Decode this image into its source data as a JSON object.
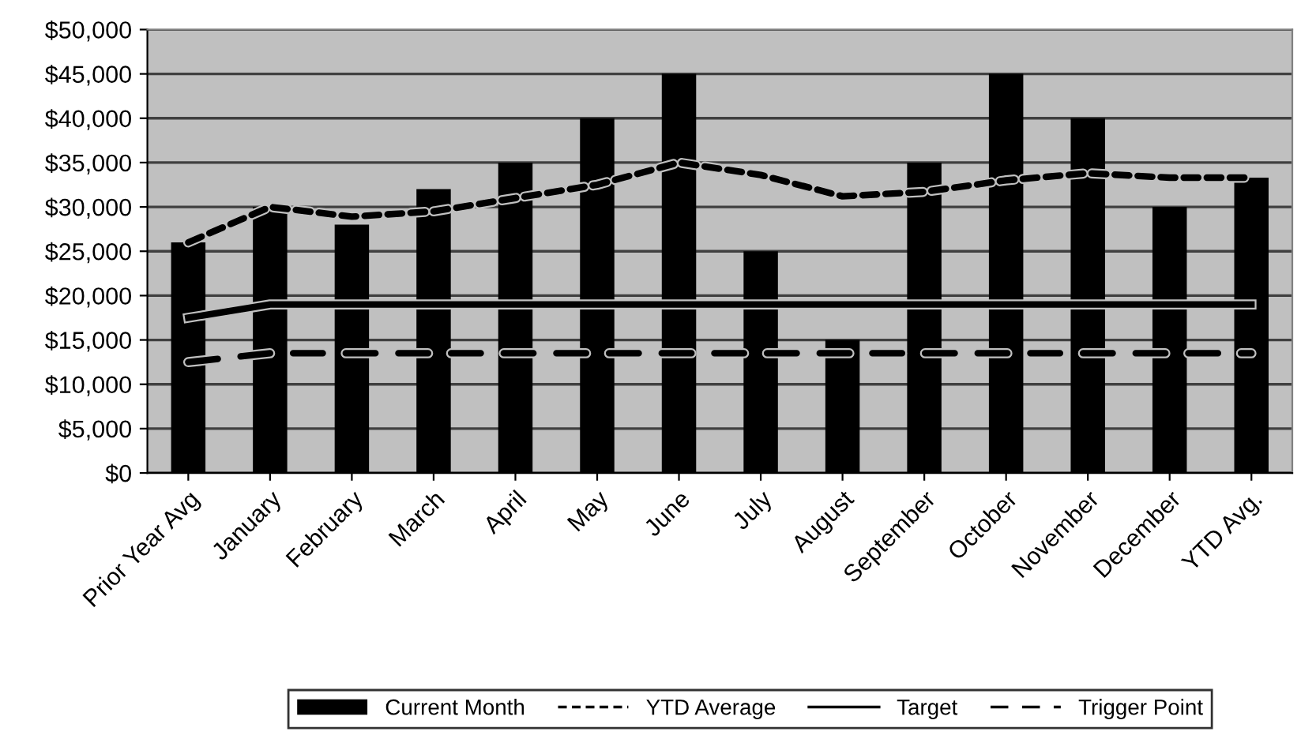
{
  "chart_data": {
    "type": "bar",
    "categories": [
      "Prior Year Avg",
      "January",
      "February",
      "March",
      "April",
      "May",
      "June",
      "July",
      "August",
      "September",
      "October",
      "November",
      "December",
      "YTD Avg."
    ],
    "series": [
      {
        "name": "Current Month",
        "color": "#000000",
        "values": [
          26000,
          30000,
          28000,
          32000,
          35000,
          40000,
          45000,
          25000,
          15000,
          35000,
          45000,
          40000,
          30000,
          33300
        ]
      },
      {
        "name": "YTD Average",
        "type": "line",
        "color": "#000000",
        "line_style": "dotted",
        "values": [
          26000,
          30000,
          28900,
          29500,
          31000,
          32500,
          35000,
          33600,
          31200,
          31700,
          33000,
          33800,
          33300,
          33300
        ]
      },
      {
        "name": "Target",
        "type": "line",
        "color": "#000000",
        "line_style": "solid",
        "values": [
          17500,
          19000,
          19000,
          19000,
          19000,
          19000,
          19000,
          19000,
          19000,
          19000,
          19000,
          19000,
          19000,
          19000
        ]
      },
      {
        "name": "Trigger Point",
        "type": "line",
        "color": "#000000",
        "line_style": "dashed",
        "values": [
          12500,
          13500,
          13500,
          13500,
          13500,
          13500,
          13500,
          13500,
          13500,
          13500,
          13500,
          13500,
          13500,
          13500
        ]
      }
    ],
    "ylim": [
      0,
      50000
    ],
    "yticks": [
      {
        "value": 0,
        "label": "$0"
      },
      {
        "value": 5000,
        "label": "$5,000"
      },
      {
        "value": 10000,
        "label": "$10,000"
      },
      {
        "value": 15000,
        "label": "$15,000"
      },
      {
        "value": 20000,
        "label": "$20,000"
      },
      {
        "value": 25000,
        "label": "$25,000"
      },
      {
        "value": 30000,
        "label": "$30,000"
      },
      {
        "value": 35000,
        "label": "$35,000"
      },
      {
        "value": 40000,
        "label": "$40,000"
      },
      {
        "value": 45000,
        "label": "$45,000"
      },
      {
        "value": 50000,
        "label": "$50,000"
      }
    ],
    "grid": "y",
    "legend": "bottom"
  }
}
